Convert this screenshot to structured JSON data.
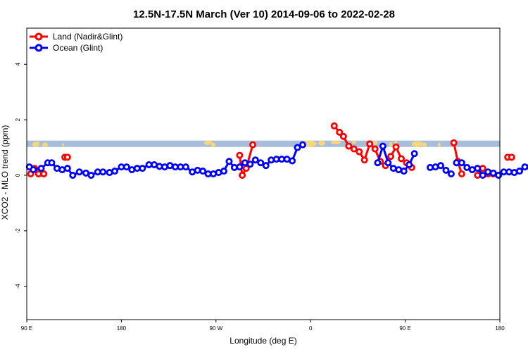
{
  "chart_data": {
    "type": "line",
    "title": "12.5N-17.5N March (Ver 10)   2014-09-06 to 2022-02-28",
    "xlabel": "Longitude (deg E)",
    "ylabel": "XCO2 - MLO trend (ppm)",
    "xlim": [
      90,
      450
    ],
    "ylim": [
      -5.2,
      5.3
    ],
    "x_ticks": [
      {
        "value": 90,
        "label": "90 E"
      },
      {
        "value": 180,
        "label": "180"
      },
      {
        "value": 270,
        "label": "90 W"
      },
      {
        "value": 360,
        "label": "0"
      },
      {
        "value": 450,
        "label": "90 E"
      },
      {
        "value": 540,
        "label": "180"
      }
    ],
    "y_ticks": [
      {
        "value": -4,
        "label": "-4"
      },
      {
        "value": -2,
        "label": "-2"
      },
      {
        "value": 0,
        "label": "0"
      },
      {
        "value": 2,
        "label": "2"
      },
      {
        "value": 4,
        "label": "4"
      }
    ],
    "legend": {
      "position": "top-left",
      "entries": [
        {
          "label": "Land (Nadir&Glint)",
          "color": "#ff0000"
        },
        {
          "label": "Ocean (Glint)",
          "color": "#0000ff"
        }
      ]
    },
    "map_strip": {
      "y_range": [
        1.02,
        1.25
      ],
      "ocean_color": "#a7bddc",
      "land_color": "#f5d77a"
    },
    "series": [
      {
        "name": "Land (Nadir&Glint)",
        "color": "#ff0000",
        "segments": [
          [
            [
              93,
              0.05
            ],
            [
              96,
              0.25
            ],
            [
              99,
              0.05
            ],
            [
              103,
              0.05
            ]
          ],
          [
            [
              119,
              0.65
            ],
            [
              121,
              0.65
            ]
          ],
          [
            [
              252,
              0.72
            ],
            [
              254,
              0.0
            ],
            [
              257,
              0.25
            ],
            [
              262,
              1.1
            ]
          ],
          [
            [
              324,
              1.78
            ],
            [
              328,
              1.55
            ],
            [
              331,
              1.4
            ],
            [
              335,
              1.05
            ],
            [
              339,
              0.95
            ],
            [
              343,
              0.85
            ],
            [
              347,
              0.55
            ],
            [
              351,
              1.13
            ],
            [
              355,
              0.95
            ],
            [
              359,
              0.5
            ],
            [
              363,
              0.35
            ],
            [
              367,
              0.68
            ],
            [
              371,
              1.02
            ],
            [
              375,
              0.6
            ],
            [
              379,
              0.45
            ],
            [
              383,
              0.28
            ]
          ],
          [
            [
              415,
              1.17
            ],
            [
              418,
              0.5
            ],
            [
              421,
              0.05
            ]
          ],
          [
            [
              433,
              0.0
            ],
            [
              437,
              0.25
            ],
            [
              441,
              0.05
            ],
            [
              445,
              0.05
            ]
          ],
          [
            [
              456,
              0.65
            ],
            [
              459,
              0.65
            ]
          ]
        ]
      },
      {
        "name": "Ocean (Glint)",
        "color": "#0000ff",
        "segments": [
          [
            [
              92,
              0.3
            ],
            [
              95,
              0.2
            ],
            [
              101,
              0.25
            ],
            [
              106,
              0.45
            ],
            [
              109,
              0.45
            ],
            [
              113,
              0.25
            ],
            [
              117,
              0.2
            ],
            [
              121,
              0.25
            ],
            [
              125,
              0.0
            ],
            [
              130,
              0.12
            ],
            [
              135,
              0.08
            ],
            [
              139,
              0.0
            ],
            [
              144,
              0.12
            ],
            [
              148,
              0.12
            ],
            [
              153,
              0.1
            ],
            [
              157,
              0.15
            ],
            [
              162,
              0.3
            ],
            [
              166,
              0.3
            ],
            [
              170,
              0.2
            ],
            [
              174,
              0.25
            ],
            [
              178,
              0.25
            ],
            [
              183,
              0.38
            ],
            [
              187,
              0.38
            ],
            [
              191,
              0.32
            ],
            [
              195,
              0.3
            ],
            [
              199,
              0.35
            ],
            [
              203,
              0.3
            ],
            [
              207,
              0.3
            ],
            [
              211,
              0.3
            ],
            [
              216,
              0.12
            ],
            [
              220,
              0.18
            ],
            [
              224,
              0.15
            ],
            [
              228,
              0.05
            ],
            [
              232,
              0.05
            ],
            [
              236,
              0.1
            ],
            [
              240,
              0.15
            ],
            [
              244,
              0.5
            ],
            [
              248,
              0.28
            ],
            [
              252,
              0.3
            ],
            [
              256,
              0.45
            ],
            [
              260,
              0.4
            ],
            [
              264,
              0.55
            ],
            [
              268,
              0.45
            ],
            [
              272,
              0.35
            ],
            [
              276,
              0.55
            ],
            [
              280,
              0.58
            ],
            [
              284,
              0.58
            ],
            [
              288,
              0.58
            ],
            [
              292,
              0.52
            ],
            [
              296,
              1.0
            ],
            [
              300,
              1.1
            ]
          ],
          [
            [
              357,
              0.45
            ],
            [
              361,
              1.05
            ],
            [
              365,
              0.45
            ],
            [
              369,
              0.25
            ],
            [
              373,
              0.2
            ],
            [
              377,
              0.15
            ],
            [
              381,
              0.38
            ],
            [
              385,
              0.78
            ]
          ],
          [
            [
              397,
              0.28
            ],
            [
              401,
              0.3
            ],
            [
              405,
              0.35
            ],
            [
              409,
              0.18
            ],
            [
              413,
              0.05
            ]
          ],
          [
            [
              417,
              0.45
            ],
            [
              421,
              0.45
            ],
            [
              425,
              0.28
            ],
            [
              429,
              0.2
            ],
            [
              433,
              0.25
            ],
            [
              437,
              0.0
            ],
            [
              441,
              0.12
            ],
            [
              445,
              0.08
            ],
            [
              449,
              0.0
            ],
            [
              453,
              0.12
            ],
            [
              457,
              0.12
            ],
            [
              461,
              0.1
            ],
            [
              465,
              0.15
            ],
            [
              469,
              0.3
            ],
            [
              473,
              0.3
            ]
          ]
        ]
      }
    ]
  }
}
